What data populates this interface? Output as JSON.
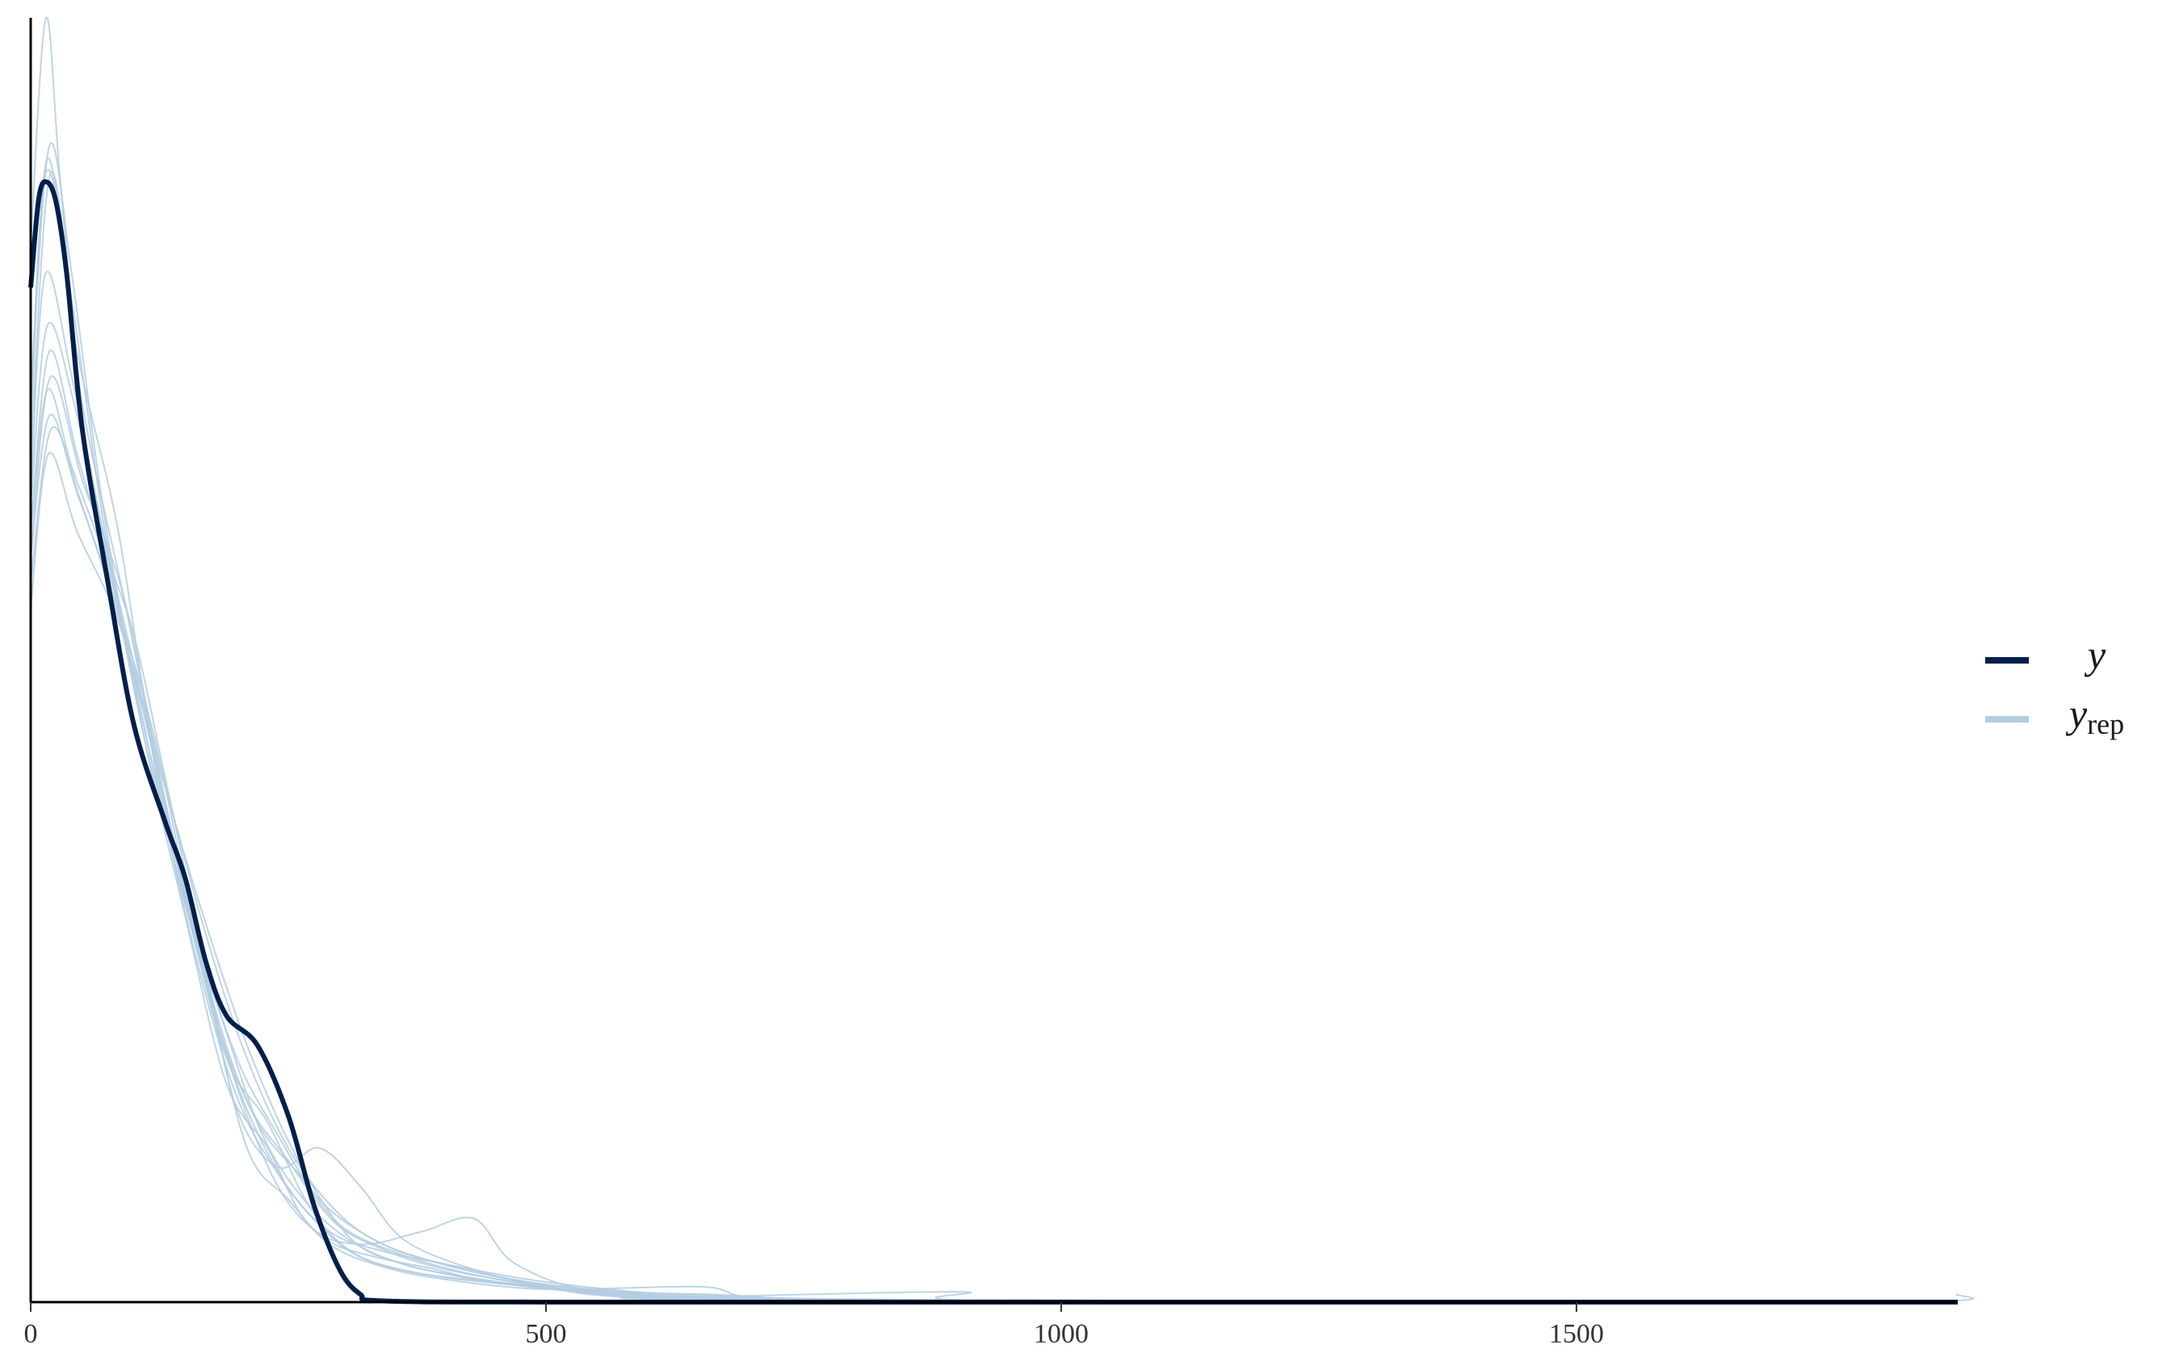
{
  "chart_data": {
    "type": "line",
    "title": "",
    "xlabel": "",
    "ylabel": "",
    "xlim": [
      0,
      1870
    ],
    "ylim": [
      0,
      1.0
    ],
    "grid": false,
    "legend_position": "right",
    "x_ticks": [
      {
        "value": 0,
        "label": "0"
      },
      {
        "value": 500,
        "label": "500"
      },
      {
        "value": 1000,
        "label": "1000"
      },
      {
        "value": 1500,
        "label": "1500"
      }
    ],
    "colors": {
      "y": "#011f4b",
      "yrep": "#b3cde0"
    },
    "legend": [
      {
        "series": "y",
        "label": "y",
        "subscript": ""
      },
      {
        "series": "yrep",
        "label": "y",
        "subscript": "rep"
      }
    ],
    "series": [
      {
        "name": "y",
        "values": [
          [
            0,
            0.79
          ],
          [
            8,
            0.86
          ],
          [
            16,
            0.872
          ],
          [
            25,
            0.855
          ],
          [
            35,
            0.8
          ],
          [
            50,
            0.68
          ],
          [
            75,
            0.56
          ],
          [
            100,
            0.45
          ],
          [
            130,
            0.375
          ],
          [
            150,
            0.33
          ],
          [
            170,
            0.265
          ],
          [
            190,
            0.223
          ],
          [
            220,
            0.2
          ],
          [
            250,
            0.145
          ],
          [
            275,
            0.075
          ],
          [
            300,
            0.025
          ],
          [
            320,
            0.006
          ],
          [
            340,
            0.001
          ],
          [
            500,
            0
          ],
          [
            1000,
            0
          ],
          [
            1500,
            0
          ],
          [
            1870,
            0
          ]
        ]
      },
      {
        "values": [
          [
            0,
            0.825
          ],
          [
            15,
            1.0
          ],
          [
            30,
            0.86
          ],
          [
            60,
            0.63
          ],
          [
            100,
            0.52
          ],
          [
            130,
            0.41
          ],
          [
            170,
            0.26
          ],
          [
            200,
            0.15
          ],
          [
            240,
            0.105
          ],
          [
            280,
            0.12
          ],
          [
            320,
            0.09
          ],
          [
            360,
            0.05
          ],
          [
            420,
            0.028
          ],
          [
            500,
            0.012
          ],
          [
            600,
            0.003
          ],
          [
            750,
            0.001
          ],
          [
            1000,
            0
          ],
          [
            1870,
            0
          ]
        ]
      },
      {
        "values": [
          [
            0,
            0.7
          ],
          [
            18,
            0.9
          ],
          [
            40,
            0.8
          ],
          [
            70,
            0.62
          ],
          [
            110,
            0.44
          ],
          [
            150,
            0.3
          ],
          [
            190,
            0.17
          ],
          [
            230,
            0.12
          ],
          [
            270,
            0.06
          ],
          [
            320,
            0.045
          ],
          [
            380,
            0.055
          ],
          [
            430,
            0.065
          ],
          [
            470,
            0.03
          ],
          [
            550,
            0.008
          ],
          [
            700,
            0.002
          ],
          [
            900,
            0
          ],
          [
            1870,
            0
          ]
        ]
      },
      {
        "values": [
          [
            0,
            0.68
          ],
          [
            16,
            0.89
          ],
          [
            45,
            0.74
          ],
          [
            85,
            0.6
          ],
          [
            120,
            0.42
          ],
          [
            160,
            0.27
          ],
          [
            200,
            0.16
          ],
          [
            240,
            0.1
          ],
          [
            280,
            0.06
          ],
          [
            320,
            0.035
          ],
          [
            380,
            0.022
          ],
          [
            460,
            0.014
          ],
          [
            550,
            0.008
          ],
          [
            660,
            0.006
          ],
          [
            760,
            0.002
          ],
          [
            1000,
            0
          ],
          [
            1870,
            0
          ]
        ]
      },
      {
        "values": [
          [
            0,
            0.66
          ],
          [
            20,
            0.88
          ],
          [
            50,
            0.7
          ],
          [
            90,
            0.55
          ],
          [
            130,
            0.39
          ],
          [
            170,
            0.25
          ],
          [
            210,
            0.12
          ],
          [
            250,
            0.08
          ],
          [
            290,
            0.045
          ],
          [
            340,
            0.028
          ],
          [
            400,
            0.018
          ],
          [
            500,
            0.01
          ],
          [
            650,
            0.012
          ],
          [
            700,
            0.004
          ],
          [
            850,
            0.002
          ],
          [
            1000,
            0
          ],
          [
            1870,
            0
          ]
        ]
      },
      {
        "values": [
          [
            0,
            0.63
          ],
          [
            14,
            0.8
          ],
          [
            40,
            0.72
          ],
          [
            75,
            0.58
          ],
          [
            110,
            0.44
          ],
          [
            150,
            0.31
          ],
          [
            190,
            0.19
          ],
          [
            230,
            0.14
          ],
          [
            270,
            0.075
          ],
          [
            310,
            0.04
          ],
          [
            360,
            0.025
          ],
          [
            420,
            0.018
          ],
          [
            500,
            0.012
          ],
          [
            600,
            0.004
          ],
          [
            900,
            0.008
          ],
          [
            950,
            0.001
          ],
          [
            1870,
            0
          ]
        ]
      },
      {
        "values": [
          [
            0,
            0.6
          ],
          [
            18,
            0.74
          ],
          [
            45,
            0.66
          ],
          [
            80,
            0.56
          ],
          [
            115,
            0.43
          ],
          [
            155,
            0.3
          ],
          [
            195,
            0.18
          ],
          [
            240,
            0.09
          ],
          [
            285,
            0.05
          ],
          [
            330,
            0.036
          ],
          [
            390,
            0.026
          ],
          [
            450,
            0.015
          ],
          [
            540,
            0.009
          ],
          [
            650,
            0.003
          ],
          [
            800,
            0.001
          ],
          [
            1870,
            0
          ]
        ]
      },
      {
        "values": [
          [
            0,
            0.6
          ],
          [
            16,
            0.71
          ],
          [
            40,
            0.65
          ],
          [
            75,
            0.57
          ],
          [
            115,
            0.44
          ],
          [
            160,
            0.28
          ],
          [
            200,
            0.17
          ],
          [
            245,
            0.095
          ],
          [
            290,
            0.055
          ],
          [
            340,
            0.04
          ],
          [
            400,
            0.03
          ],
          [
            480,
            0.018
          ],
          [
            560,
            0.01
          ],
          [
            650,
            0.004
          ],
          [
            760,
            0.001
          ],
          [
            1870,
            0
          ]
        ]
      },
      {
        "values": [
          [
            0,
            0.58
          ],
          [
            18,
            0.69
          ],
          [
            45,
            0.63
          ],
          [
            80,
            0.55
          ],
          [
            120,
            0.44
          ],
          [
            160,
            0.29
          ],
          [
            200,
            0.19
          ],
          [
            240,
            0.13
          ],
          [
            280,
            0.08
          ],
          [
            330,
            0.05
          ],
          [
            380,
            0.034
          ],
          [
            450,
            0.02
          ],
          [
            520,
            0.012
          ],
          [
            600,
            0.006
          ],
          [
            700,
            0.002
          ],
          [
            1870,
            0
          ]
        ]
      },
      {
        "values": [
          [
            0,
            0.56
          ],
          [
            20,
            0.68
          ],
          [
            50,
            0.62
          ],
          [
            90,
            0.52
          ],
          [
            125,
            0.42
          ],
          [
            165,
            0.3
          ],
          [
            205,
            0.2
          ],
          [
            250,
            0.12
          ],
          [
            300,
            0.068
          ],
          [
            350,
            0.042
          ],
          [
            410,
            0.028
          ],
          [
            480,
            0.016
          ],
          [
            560,
            0.008
          ],
          [
            680,
            0.003
          ],
          [
            1000,
            0
          ],
          [
            1870,
            0
          ]
        ]
      },
      {
        "values": [
          [
            0,
            0.54
          ],
          [
            17,
            0.66
          ],
          [
            45,
            0.6
          ],
          [
            85,
            0.53
          ],
          [
            120,
            0.43
          ],
          [
            160,
            0.32
          ],
          [
            210,
            0.2
          ],
          [
            260,
            0.11
          ],
          [
            310,
            0.05
          ],
          [
            360,
            0.03
          ],
          [
            420,
            0.02
          ],
          [
            500,
            0.011
          ],
          [
            580,
            0.004
          ],
          [
            800,
            0.001
          ],
          [
            1870,
            0
          ]
        ]
      },
      {
        "values": [
          [
            0,
            0.7
          ],
          [
            15,
            0.88
          ],
          [
            40,
            0.78
          ],
          [
            72,
            0.6
          ],
          [
            105,
            0.48
          ],
          [
            140,
            0.35
          ],
          [
            180,
            0.22
          ],
          [
            220,
            0.14
          ],
          [
            260,
            0.1
          ],
          [
            300,
            0.06
          ],
          [
            350,
            0.04
          ],
          [
            410,
            0.025
          ],
          [
            490,
            0.013
          ],
          [
            580,
            0.005
          ],
          [
            700,
            0.002
          ],
          [
            1870,
            0
          ]
        ]
      },
      {
        "values": [
          [
            0,
            0.62
          ],
          [
            16,
            0.76
          ],
          [
            42,
            0.7
          ],
          [
            78,
            0.57
          ],
          [
            115,
            0.43
          ],
          [
            150,
            0.31
          ],
          [
            190,
            0.21
          ],
          [
            225,
            0.13
          ],
          [
            265,
            0.08
          ],
          [
            310,
            0.048
          ],
          [
            360,
            0.03
          ],
          [
            430,
            0.018
          ],
          [
            520,
            0.009
          ],
          [
            650,
            0.004
          ],
          [
            1000,
            0
          ],
          [
            1800,
            0
          ],
          [
            1870,
            0.006
          ]
        ]
      },
      {
        "values": [
          [
            0,
            0.58
          ],
          [
            19,
            0.72
          ],
          [
            50,
            0.64
          ],
          [
            90,
            0.55
          ],
          [
            128,
            0.4
          ],
          [
            168,
            0.26
          ],
          [
            208,
            0.16
          ],
          [
            250,
            0.11
          ],
          [
            295,
            0.062
          ],
          [
            345,
            0.04
          ],
          [
            400,
            0.026
          ],
          [
            470,
            0.016
          ],
          [
            560,
            0.009
          ],
          [
            700,
            0.004
          ],
          [
            850,
            0.001
          ],
          [
            1870,
            0
          ]
        ]
      }
    ]
  }
}
